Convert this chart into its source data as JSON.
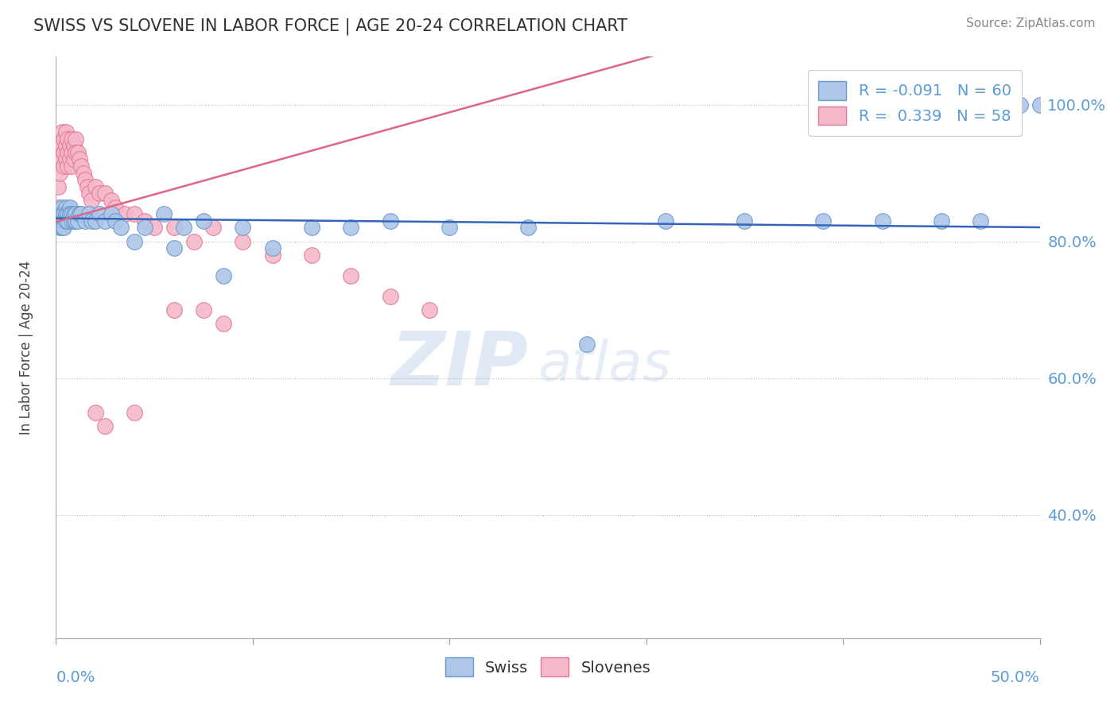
{
  "title": "SWISS VS SLOVENE IN LABOR FORCE | AGE 20-24 CORRELATION CHART",
  "source_text": "Source: ZipAtlas.com",
  "ylabel": "In Labor Force | Age 20-24",
  "watermark_zip": "ZIP",
  "watermark_atlas": "atlas",
  "swiss_color": "#aec6e8",
  "slovene_color": "#f5b8c8",
  "swiss_edge": "#6699cc",
  "slovene_edge": "#e07898",
  "title_color": "#333333",
  "axis_color": "#5b9bd5",
  "grid_color": "#bbbbbb",
  "xlim": [
    0.0,
    0.5
  ],
  "ylim": [
    0.22,
    1.07
  ],
  "ytick_vals": [
    0.4,
    0.6,
    0.8,
    1.0
  ],
  "xtick_vals": [
    0.0,
    0.1,
    0.2,
    0.3,
    0.4,
    0.5
  ],
  "swiss_R": -0.091,
  "swiss_N": 60,
  "slovene_R": 0.339,
  "slovene_N": 58,
  "swiss_line_color": "#3366bb",
  "slovene_line_color": "#dd6688",
  "swiss_x": [
    0.001,
    0.001,
    0.002,
    0.002,
    0.002,
    0.003,
    0.003,
    0.003,
    0.003,
    0.004,
    0.004,
    0.004,
    0.005,
    0.005,
    0.005,
    0.006,
    0.006,
    0.007,
    0.007,
    0.008,
    0.008,
    0.009,
    0.009,
    0.01,
    0.01,
    0.011,
    0.012,
    0.013,
    0.015,
    0.017,
    0.018,
    0.02,
    0.022,
    0.025,
    0.028,
    0.03,
    0.033,
    0.04,
    0.045,
    0.055,
    0.06,
    0.065,
    0.075,
    0.085,
    0.095,
    0.11,
    0.13,
    0.15,
    0.17,
    0.2,
    0.24,
    0.27,
    0.31,
    0.35,
    0.39,
    0.42,
    0.45,
    0.47,
    0.49,
    0.5
  ],
  "swiss_y": [
    0.84,
    0.83,
    0.84,
    0.83,
    0.82,
    0.85,
    0.84,
    0.83,
    0.82,
    0.84,
    0.83,
    0.82,
    0.85,
    0.84,
    0.83,
    0.84,
    0.83,
    0.85,
    0.84,
    0.84,
    0.83,
    0.84,
    0.83,
    0.84,
    0.83,
    0.83,
    0.84,
    0.84,
    0.83,
    0.84,
    0.83,
    0.83,
    0.84,
    0.83,
    0.84,
    0.83,
    0.82,
    0.8,
    0.82,
    0.84,
    0.79,
    0.82,
    0.83,
    0.75,
    0.82,
    0.79,
    0.82,
    0.82,
    0.83,
    0.82,
    0.82,
    0.65,
    0.83,
    0.83,
    0.83,
    0.83,
    0.83,
    0.83,
    1.0,
    1.0
  ],
  "slovene_x": [
    0.001,
    0.001,
    0.002,
    0.002,
    0.002,
    0.003,
    0.003,
    0.003,
    0.004,
    0.004,
    0.004,
    0.005,
    0.005,
    0.005,
    0.006,
    0.006,
    0.006,
    0.007,
    0.007,
    0.008,
    0.008,
    0.008,
    0.009,
    0.009,
    0.01,
    0.01,
    0.011,
    0.012,
    0.013,
    0.014,
    0.015,
    0.016,
    0.017,
    0.018,
    0.02,
    0.022,
    0.025,
    0.028,
    0.03,
    0.035,
    0.04,
    0.045,
    0.05,
    0.06,
    0.07,
    0.08,
    0.095,
    0.11,
    0.13,
    0.15,
    0.17,
    0.19,
    0.06,
    0.075,
    0.085,
    0.04,
    0.02,
    0.025
  ],
  "slovene_y": [
    0.88,
    0.85,
    0.93,
    0.92,
    0.9,
    0.96,
    0.94,
    0.92,
    0.95,
    0.93,
    0.91,
    0.96,
    0.94,
    0.92,
    0.95,
    0.93,
    0.91,
    0.94,
    0.92,
    0.95,
    0.93,
    0.91,
    0.94,
    0.92,
    0.95,
    0.93,
    0.93,
    0.92,
    0.91,
    0.9,
    0.89,
    0.88,
    0.87,
    0.86,
    0.88,
    0.87,
    0.87,
    0.86,
    0.85,
    0.84,
    0.84,
    0.83,
    0.82,
    0.82,
    0.8,
    0.82,
    0.8,
    0.78,
    0.78,
    0.75,
    0.72,
    0.7,
    0.7,
    0.7,
    0.68,
    0.55,
    0.55,
    0.53
  ]
}
